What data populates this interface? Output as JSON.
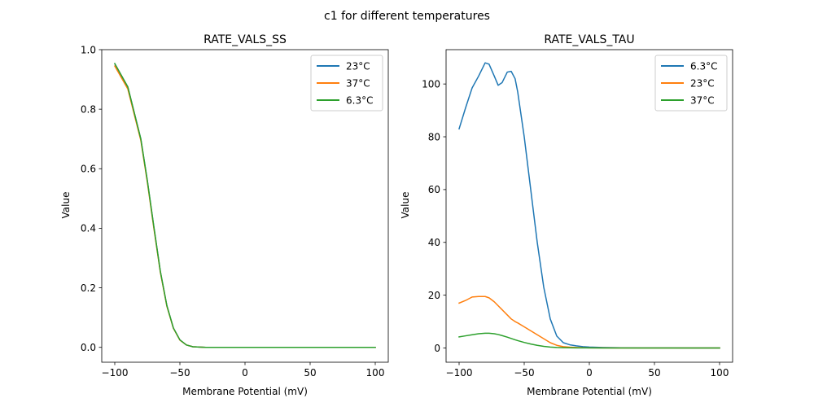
{
  "figure": {
    "suptitle": "c1 for different temperatures"
  },
  "chart_data": [
    {
      "type": "line",
      "title": "RATE_VALS_SS",
      "xlabel": "Membrane Potential (mV)",
      "ylabel": "Value",
      "xlim": [
        -110,
        110
      ],
      "ylim": [
        -0.05,
        1.0
      ],
      "xticks": [
        -100,
        -50,
        0,
        50,
        100
      ],
      "xtick_labels": [
        "−100",
        "−50",
        "0",
        "50",
        "100"
      ],
      "yticks": [
        0.0,
        0.2,
        0.4,
        0.6,
        0.8,
        1.0
      ],
      "ytick_labels": [
        "0.0",
        "0.2",
        "0.4",
        "0.6",
        "0.8",
        "1.0"
      ],
      "grid": false,
      "legend_position": "top-right",
      "x": [
        -100,
        -90,
        -80,
        -75,
        -70,
        -65,
        -60,
        -55,
        -50,
        -45,
        -40,
        -35,
        -30,
        -20,
        0,
        20,
        40,
        60,
        80,
        100
      ],
      "series": [
        {
          "name": "23°C",
          "color": "#1f77b4",
          "values": [
            0.953,
            0.875,
            0.7,
            0.56,
            0.405,
            0.255,
            0.14,
            0.065,
            0.025,
            0.008,
            0.002,
            0.001,
            0.0,
            0.0,
            0.0,
            0.0,
            0.0,
            0.0,
            0.0,
            0.0
          ]
        },
        {
          "name": "37°C",
          "color": "#ff7f0e",
          "values": [
            0.945,
            0.868,
            0.695,
            0.555,
            0.4,
            0.252,
            0.138,
            0.064,
            0.024,
            0.008,
            0.002,
            0.001,
            0.0,
            0.0,
            0.0,
            0.0,
            0.0,
            0.0,
            0.0,
            0.0
          ]
        },
        {
          "name": "6.3°C",
          "color": "#2ca02c",
          "values": [
            0.953,
            0.875,
            0.7,
            0.56,
            0.405,
            0.255,
            0.14,
            0.065,
            0.025,
            0.008,
            0.002,
            0.001,
            0.0,
            0.0,
            0.0,
            0.0,
            0.0,
            0.0,
            0.0,
            0.0
          ]
        }
      ]
    },
    {
      "type": "line",
      "title": "RATE_VALS_TAU",
      "xlabel": "Membrane Potential (mV)",
      "ylabel": "Value",
      "xlim": [
        -110,
        110
      ],
      "ylim": [
        -5.4,
        113
      ],
      "xticks": [
        -100,
        -50,
        0,
        50,
        100
      ],
      "xtick_labels": [
        "−100",
        "−50",
        "0",
        "50",
        "100"
      ],
      "yticks": [
        0,
        20,
        40,
        60,
        80,
        100
      ],
      "ytick_labels": [
        "0",
        "20",
        "40",
        "60",
        "80",
        "100"
      ],
      "grid": false,
      "legend_position": "top-right",
      "x": [
        -100,
        -95,
        -90,
        -85,
        -80,
        -77,
        -73,
        -70,
        -67,
        -63,
        -60,
        -57,
        -55,
        -50,
        -45,
        -40,
        -35,
        -30,
        -25,
        -20,
        -15,
        -10,
        -5,
        0,
        10,
        20,
        40,
        60,
        80,
        100
      ],
      "series": [
        {
          "name": "6.3°C",
          "color": "#1f77b4",
          "values": [
            83,
            91,
            98.5,
            103,
            108,
            107.5,
            103,
            99.5,
            100.5,
            104.5,
            104.8,
            102,
            97,
            80,
            60,
            40,
            23,
            11,
            4.5,
            2.0,
            1.2,
            0.8,
            0.5,
            0.35,
            0.2,
            0.1,
            0.05,
            0.02,
            0.01,
            0.0
          ]
        },
        {
          "name": "23°C",
          "color": "#ff7f0e",
          "values": [
            17,
            18,
            19.3,
            19.5,
            19.5,
            19.0,
            17.5,
            16,
            14.5,
            12.5,
            11,
            10,
            9.5,
            8,
            6.5,
            5,
            3.5,
            2,
            1,
            0.5,
            0.3,
            0.2,
            0.1,
            0.05,
            0.02,
            0.01,
            0.0,
            0.0,
            0.0,
            0.0
          ]
        },
        {
          "name": "37°C",
          "color": "#2ca02c",
          "values": [
            4.2,
            4.6,
            5.0,
            5.4,
            5.6,
            5.6,
            5.4,
            5.1,
            4.7,
            4.1,
            3.6,
            3.1,
            2.8,
            2.1,
            1.5,
            1.0,
            0.6,
            0.35,
            0.2,
            0.12,
            0.08,
            0.05,
            0.03,
            0.02,
            0.01,
            0.0,
            0.0,
            0.0,
            0.0,
            0.0
          ]
        }
      ]
    }
  ]
}
